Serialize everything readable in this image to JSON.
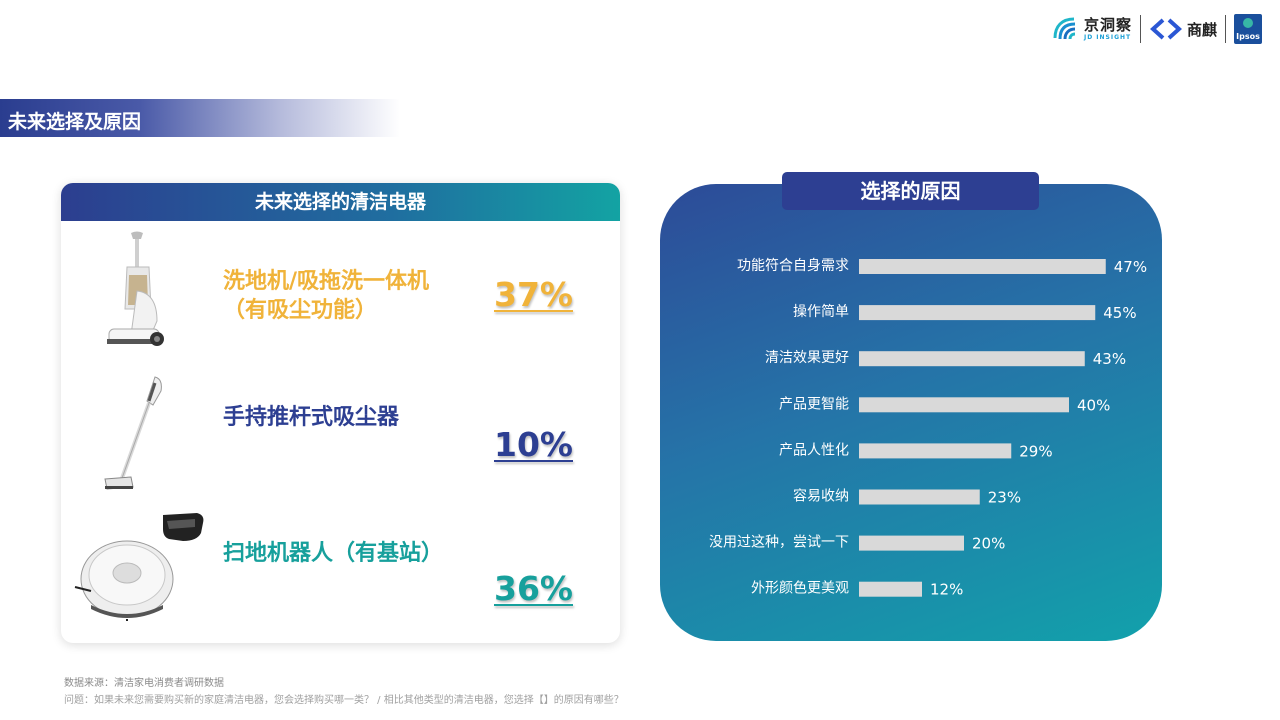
{
  "logos": {
    "jd_cn": "京洞察",
    "jd_en": "JD INSIGHT",
    "shangqi": "商麒",
    "ipsos": "Ipsos"
  },
  "section_title": "未来选择及原因",
  "left": {
    "title": "未来选择的清洁电器",
    "items": [
      {
        "label_line1": "洗地机/吸拖洗一体机",
        "label_line2": "（有吸尘功能）",
        "pct": "37%",
        "color": "#f0b33a",
        "image": "floor-washer"
      },
      {
        "label_line1": "手持推杆式吸尘器",
        "label_line2": "",
        "pct": "10%",
        "color": "#2d3f92",
        "image": "stick-vacuum"
      },
      {
        "label_line1": "扫地机器人（有基站）",
        "label_line2": "",
        "pct": "36%",
        "color": "#17a09c",
        "image": "robot-vacuum"
      }
    ]
  },
  "right": {
    "title": "选择的原因"
  },
  "chart_data": {
    "type": "bar",
    "orientation": "horizontal",
    "categories": [
      "功能符合自身需求",
      "操作简单",
      "清洁效果更好",
      "产品更智能",
      "产品人性化",
      "容易收纳",
      "没用过这种，尝试一下",
      "外形颜色更美观"
    ],
    "values": [
      47,
      45,
      43,
      40,
      29,
      23,
      20,
      12
    ],
    "value_labels": [
      "47%",
      "45%",
      "43%",
      "40%",
      "29%",
      "23%",
      "20%",
      "12%"
    ],
    "bar_color": "#d9d9d9",
    "xlim": [
      0,
      100
    ],
    "grid": false
  },
  "footer": {
    "source": "数据来源：清洁家电消费者调研数据",
    "question": "问题：如果未来您需要购买新的家庭清洁电器，您会选择购买哪一类？ / 相比其他类型的清洁电器，您选择【】的原因有哪些？"
  }
}
